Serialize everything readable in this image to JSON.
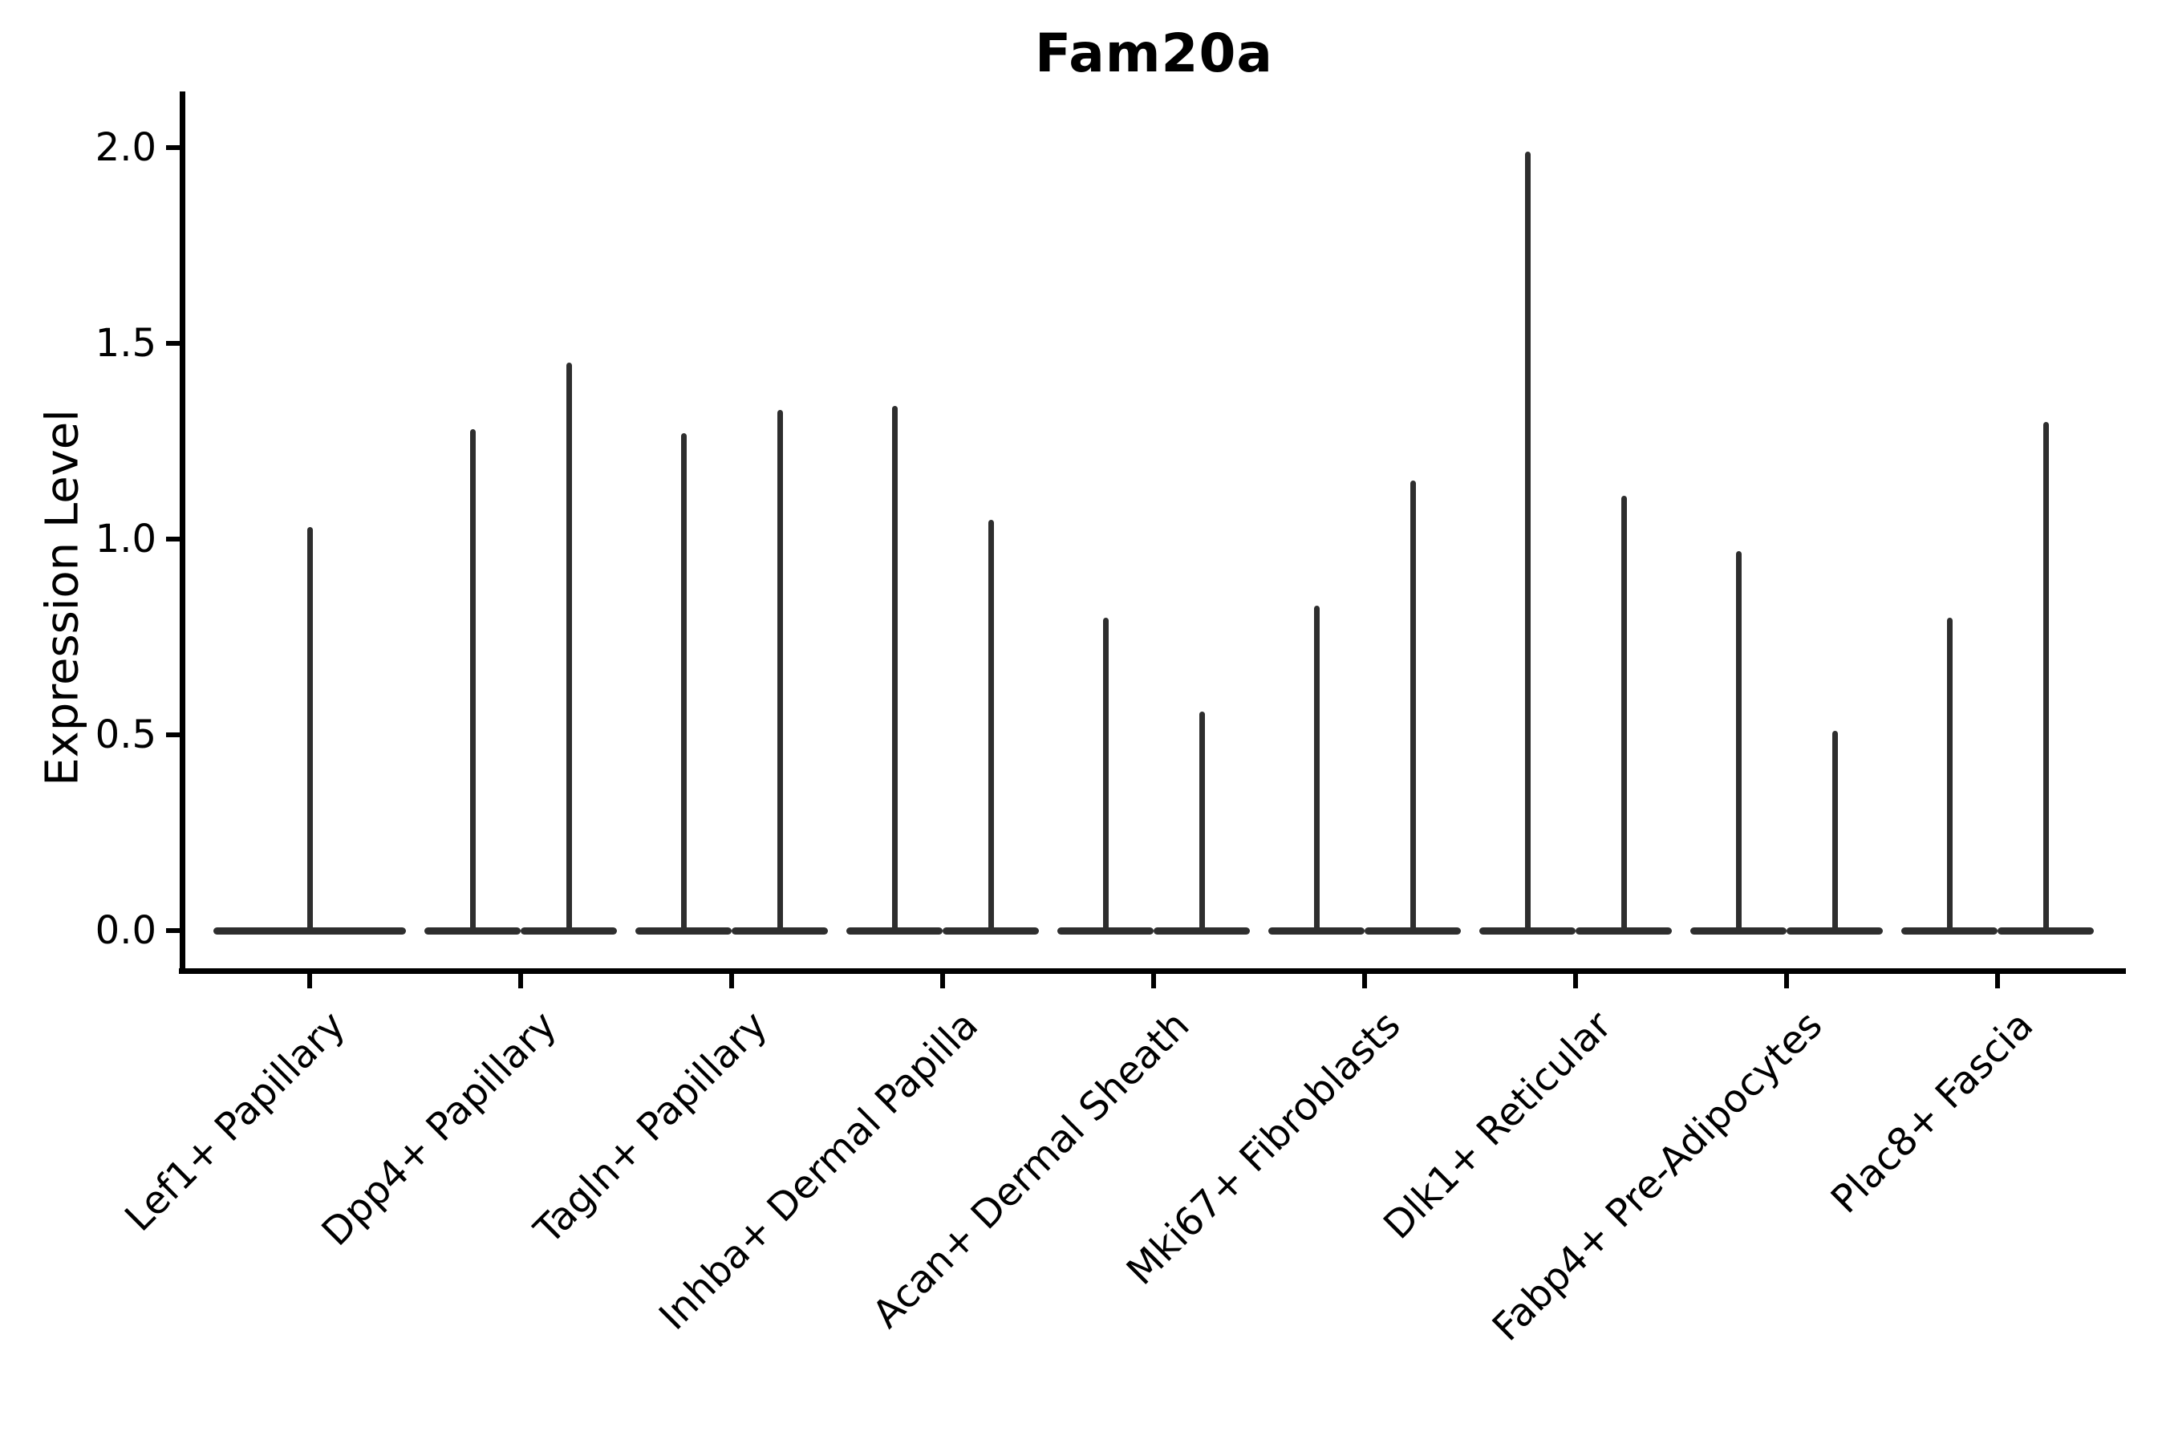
{
  "title": "Fam20a",
  "y_axis": {
    "label": "Expression Level",
    "ticks": [
      {
        "label": "0.0",
        "value": 0.0
      },
      {
        "label": "0.5",
        "value": 0.5
      },
      {
        "label": "1.0",
        "value": 1.0
      },
      {
        "label": "1.5",
        "value": 1.5
      },
      {
        "label": "2.0",
        "value": 2.0
      }
    ]
  },
  "chart_data": {
    "type": "violin",
    "title": "Fam20a",
    "xlabel": "",
    "ylabel": "Expression Level",
    "ylim": [
      -0.1,
      2.14
    ],
    "yticks": [
      0.0,
      0.5,
      1.0,
      1.5,
      2.0
    ],
    "grid": false,
    "legend": "none",
    "style": "Seurat-style violin plot: wide flat zero-expression bodies at baseline with thin vertical tails up to the maximum expression; most categories contain two side-by-side violins, the first category a single full-width violin",
    "violin_color": "#2e2e2e",
    "axis_color": "#000000",
    "background_color": "#ffffff",
    "categories": [
      {
        "label": "Lef1+ Papillary",
        "violin_max_values": [
          1.03
        ]
      },
      {
        "label": "Dpp4+ Papillary",
        "violin_max_values": [
          1.28,
          1.45
        ]
      },
      {
        "label": "Tagln+ Papillary",
        "violin_max_values": [
          1.27,
          1.33
        ]
      },
      {
        "label": "Inhba+ Dermal Papilla",
        "violin_max_values": [
          1.34,
          1.05
        ]
      },
      {
        "label": "Acan+ Dermal Sheath",
        "violin_max_values": [
          0.8,
          0.56
        ]
      },
      {
        "label": "Mki67+ Fibroblasts",
        "violin_max_values": [
          0.83,
          1.15
        ]
      },
      {
        "label": "Dlk1+ Reticular",
        "violin_max_values": [
          1.99,
          1.11
        ]
      },
      {
        "label": "Fabp4+ Pre-Adipocytes",
        "violin_max_values": [
          0.97,
          0.51
        ]
      },
      {
        "label": "Plac8+ Fascia",
        "violin_max_values": [
          0.8,
          1.3
        ]
      }
    ]
  }
}
